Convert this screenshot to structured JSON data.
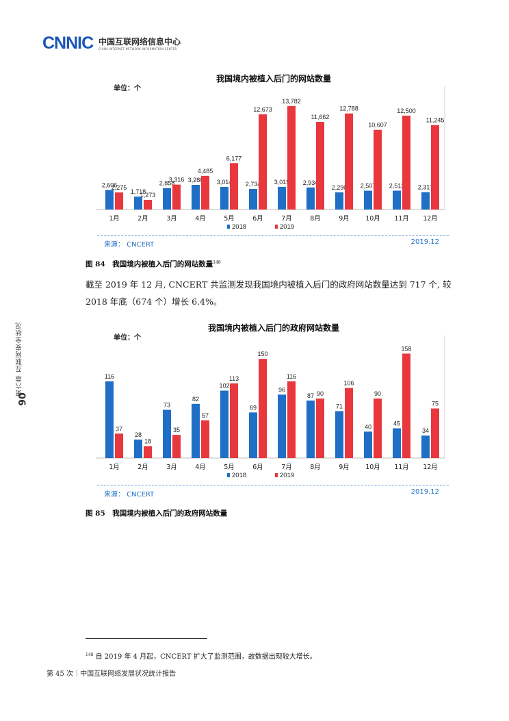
{
  "header": {
    "logo_text": "CNNIC",
    "org_name_cn": "中国互联网络信息中心",
    "org_name_en": "CHINA INTERNET NETWORK INFORMATION CENTER"
  },
  "chart1": {
    "unit_label": "单位：个",
    "source": "来源： CNCERT",
    "date": "2019.12"
  },
  "chart2": {
    "unit_label": "单位：个",
    "source": "来源： CNCERT",
    "date": "2019.12"
  },
  "captions": {
    "fig84": "图 84　我国境内被植入后门的网站数量",
    "fig84_ref": "148",
    "fig85": "图 85　我国境内被植入后门的政府网站数量"
  },
  "body": {
    "paragraph": "截至 2019 年 12 月, CNCERT 共监测发现我国境内被植入后门的政府网站数量达到 717 个, 较 2018 年底（674 个）增长 6.4%。"
  },
  "side": {
    "page_number": "90",
    "chapter": "第六章  互联网安全状况"
  },
  "footnote": {
    "ref": "148",
    "text": " 自 2019 年 4 月起，CNCERT 扩大了监测范围，故数据出现较大增长。"
  },
  "footer": {
    "text": "第 45 次｜中国互联网络发展状况统计报告"
  },
  "chart_data": [
    {
      "type": "bar",
      "title": "我国境内被植入后门的网站数量",
      "categories": [
        "1月",
        "2月",
        "3月",
        "4月",
        "5月",
        "6月",
        "7月",
        "8月",
        "9月",
        "10月",
        "11月",
        "12月"
      ],
      "series": [
        {
          "name": "2018",
          "color": "#1f6fc6",
          "values": [
            2606,
            1718,
            2858,
            3280,
            3014,
            2734,
            3019,
            2934,
            2290,
            2507,
            2513,
            2317
          ]
        },
        {
          "name": "2019",
          "color": "#e8373d",
          "values": [
            2275,
            1273,
            3316,
            4485,
            6177,
            12673,
            13782,
            11662,
            12788,
            10607,
            12500,
            11245
          ]
        }
      ],
      "value_labels": {
        "2018": [
          "2,606",
          "1,718",
          "2,858",
          "3,280",
          "3,014",
          "2,734",
          "3,019",
          "2,934",
          "2,290",
          "2,507",
          "2,513",
          "2,317"
        ],
        "2019": [
          "2,275",
          "1,273",
          "3,316",
          "4,485",
          "6,177",
          "12,673",
          "13,782",
          "11,662",
          "12,788",
          "10,607",
          "12,500",
          "11,245"
        ]
      },
      "ylim": [
        0,
        15500
      ],
      "legend": "bottom",
      "grid": false
    },
    {
      "type": "bar",
      "title": "我国境内被植入后门的政府网站数量",
      "categories": [
        "1月",
        "2月",
        "3月",
        "4月",
        "5月",
        "6月",
        "7月",
        "8月",
        "9月",
        "10月",
        "11月",
        "12月"
      ],
      "series": [
        {
          "name": "2018",
          "color": "#1f6fc6",
          "values": [
            116,
            28,
            73,
            82,
            102,
            69,
            96,
            87,
            71,
            40,
            45,
            34
          ]
        },
        {
          "name": "2019",
          "color": "#e8373d",
          "values": [
            37,
            18,
            35,
            57,
            113,
            150,
            116,
            90,
            106,
            90,
            158,
            75
          ]
        }
      ],
      "value_labels": {
        "2018": [
          "116",
          "28",
          "73",
          "82",
          "102",
          "69",
          "96",
          "87",
          "71",
          "40",
          "45",
          "34"
        ],
        "2019": [
          "37",
          "18",
          "35",
          "57",
          "113",
          "150",
          "116",
          "90",
          "106",
          "90",
          "158",
          "75"
        ]
      },
      "ylim": [
        0,
        175
      ],
      "legend": "bottom",
      "grid": false
    }
  ]
}
